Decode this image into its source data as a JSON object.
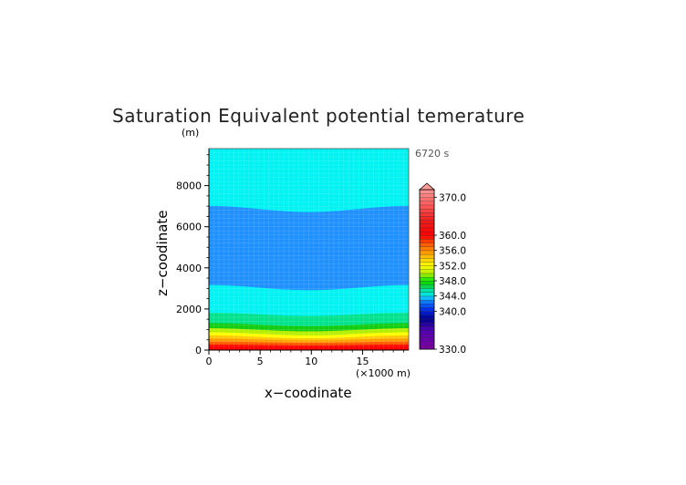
{
  "chart_data": {
    "type": "heatmap",
    "title": "Saturation Equivalent potential temerature",
    "time_label": "6720 s",
    "xlabel": "x−coodinate",
    "ylabel": "z−coodinate",
    "x_unit": "(×1000 m)",
    "y_unit": "(m)",
    "xlim": [
      0,
      19.5
    ],
    "ylim": [
      0,
      9800
    ],
    "x_ticks": [
      "0",
      "5",
      "10",
      "15"
    ],
    "y_ticks": [
      "0",
      "2000",
      "4000",
      "6000",
      "8000"
    ],
    "colorbar": {
      "range": [
        330,
        372
      ],
      "step": 1,
      "extend": "max",
      "tick_labels": [
        "370.0",
        "360.0",
        "356.0",
        "352.0",
        "348.0",
        "344.0",
        "340.0",
        "330.0"
      ]
    },
    "contour_bands": [
      {
        "value_range": [
          344,
          346
        ],
        "z_top_edge_m": 9800,
        "z_top_center_m": 9800,
        "z_bottom_edge_m": 7000,
        "z_bottom_center_m": 6700,
        "color": "#00F2F2"
      },
      {
        "value_range": [
          343,
          344
        ],
        "z_top_edge_m": 7000,
        "z_top_center_m": 6700,
        "z_bottom_edge_m": 3150,
        "z_bottom_center_m": 2900,
        "color": "#1E90FF"
      },
      {
        "value_range": [
          344,
          346
        ],
        "z_top_edge_m": 3150,
        "z_top_center_m": 2900,
        "z_bottom_edge_m": 1800,
        "z_bottom_center_m": 1650,
        "color": "#00F2F2"
      },
      {
        "value_range": [
          346,
          347
        ],
        "z_top_edge_m": 1800,
        "z_top_center_m": 1650,
        "z_bottom_edge_m": 1300,
        "z_bottom_center_m": 1150,
        "color": "#00E28C"
      },
      {
        "value_range": [
          347,
          348
        ],
        "z_top_edge_m": 1300,
        "z_top_center_m": 1150,
        "z_bottom_edge_m": 1050,
        "z_bottom_center_m": 900,
        "color": "#11CC11"
      },
      {
        "value_range": [
          348,
          350
        ],
        "z_top_edge_m": 1050,
        "z_top_center_m": 900,
        "z_bottom_edge_m": 850,
        "z_bottom_center_m": 700,
        "color": "#B5EE00"
      },
      {
        "value_range": [
          350,
          352
        ],
        "z_top_edge_m": 850,
        "z_top_center_m": 700,
        "z_bottom_edge_m": 700,
        "z_bottom_center_m": 560,
        "color": "#FFFF00"
      },
      {
        "value_range": [
          352,
          354
        ],
        "z_top_edge_m": 700,
        "z_top_center_m": 560,
        "z_bottom_edge_m": 550,
        "z_bottom_center_m": 450,
        "color": "#FFC800"
      },
      {
        "value_range": [
          354,
          356
        ],
        "z_top_edge_m": 550,
        "z_top_center_m": 450,
        "z_bottom_edge_m": 400,
        "z_bottom_center_m": 340,
        "color": "#FF9A00"
      },
      {
        "value_range": [
          356,
          358
        ],
        "z_top_edge_m": 400,
        "z_top_center_m": 340,
        "z_bottom_edge_m": 250,
        "z_bottom_center_m": 220,
        "color": "#FF5A00"
      },
      {
        "value_range": [
          358,
          362
        ],
        "z_top_edge_m": 250,
        "z_top_center_m": 220,
        "z_bottom_edge_m": 0,
        "z_bottom_center_m": 0,
        "color": "#FF0000"
      }
    ]
  }
}
